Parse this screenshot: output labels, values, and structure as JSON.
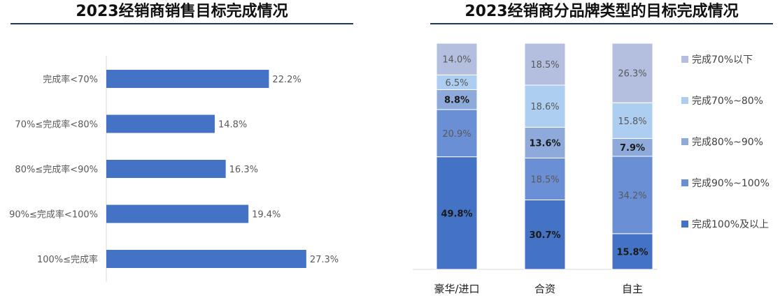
{
  "chart_data": [
    {
      "type": "bar",
      "orientation": "horizontal",
      "title": "2023经销商销售目标完成情况",
      "categories": [
        "完成率<70%",
        "70%≤完成率<80%",
        "80%≤完成率<90%",
        "90%≤完成率<100%",
        "100%≤完成率"
      ],
      "values": [
        22.2,
        14.8,
        16.3,
        19.4,
        27.3
      ],
      "value_labels": [
        "22.2%",
        "14.8%",
        "16.3%",
        "19.4%",
        "27.3%"
      ],
      "xlim": [
        0,
        30
      ],
      "grid": false,
      "color": "#4472c4"
    },
    {
      "type": "bar",
      "stacked": true,
      "title": "2023经销商分品牌类型的目标完成情况",
      "categories": [
        "豪华/进口",
        "合资",
        "自主"
      ],
      "ylim": [
        0,
        100
      ],
      "grid": false,
      "legend_position": "right",
      "series": [
        {
          "name": "完成100%及以上",
          "values": [
            49.8,
            30.7,
            15.8
          ],
          "labels": [
            "49.8%",
            "30.7%",
            "15.8%"
          ],
          "color": "#4472c4",
          "bold": true
        },
        {
          "name": "完成90%~100%",
          "values": [
            20.9,
            18.5,
            34.2
          ],
          "labels": [
            "20.9%",
            "18.5%",
            "34.2%"
          ],
          "color": "#6a8fd5",
          "bold": false
        },
        {
          "name": "完成80%~90%",
          "values": [
            8.8,
            13.6,
            7.9
          ],
          "labels": [
            "8.8%",
            "13.6%",
            "7.9%"
          ],
          "color": "#8eaadb",
          "bold": true
        },
        {
          "name": "完成70%~80%",
          "values": [
            6.5,
            18.6,
            15.8
          ],
          "labels": [
            "6.5%",
            "18.6%",
            "15.8%"
          ],
          "color": "#adcdf1",
          "bold": false
        },
        {
          "name": "完成70%以下",
          "values": [
            14.0,
            18.5,
            26.3
          ],
          "labels": [
            "14.0%",
            "18.5%",
            "26.3%"
          ],
          "color": "#b4bfe0",
          "bold": false
        }
      ]
    }
  ]
}
